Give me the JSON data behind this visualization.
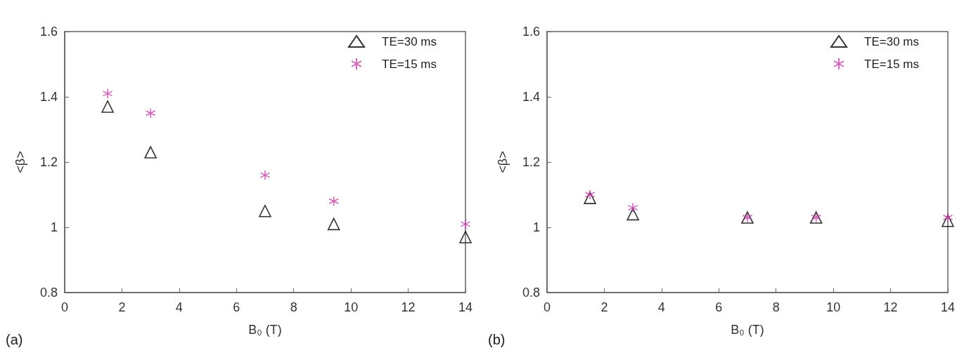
{
  "chart_data": [
    {
      "type": "scatter",
      "xlabel": "B₀ (T)",
      "ylabel": "<β>",
      "annotations": [
        "(a)"
      ],
      "x": [
        1.5,
        3,
        7,
        9.4,
        14
      ],
      "xlim": [
        0,
        14
      ],
      "xticks": [
        0,
        2,
        4,
        6,
        8,
        10,
        12,
        14
      ],
      "ylim": [
        0.8,
        1.6
      ],
      "yticks": [
        0.8,
        1,
        1.2,
        1.4,
        1.6
      ],
      "grid": false,
      "legend": "top right",
      "series": [
        {
          "name": "TE=30 ms",
          "color": "#000000",
          "marker": "triangle",
          "values": [
            1.37,
            1.23,
            1.05,
            1.01,
            0.97
          ]
        },
        {
          "name": "TE=15 ms",
          "color": "#c040a8",
          "marker": "cross",
          "values": [
            1.41,
            1.35,
            1.16,
            1.08,
            1.01
          ]
        }
      ]
    },
    {
      "type": "scatter",
      "xlabel": "B₀ (T)",
      "ylabel": "<β>",
      "annotations": [
        "(b)"
      ],
      "x": [
        1.5,
        3,
        7,
        9.4,
        14
      ],
      "xlim": [
        0,
        14
      ],
      "xticks": [
        0,
        2,
        4,
        6,
        8,
        10,
        12,
        14
      ],
      "ylim": [
        0.8,
        1.6
      ],
      "yticks": [
        0.8,
        1,
        1.2,
        1.4,
        1.6
      ],
      "grid": false,
      "legend": "top right",
      "series": [
        {
          "name": "TE=30 ms",
          "color": "#000000",
          "marker": "triangle",
          "values": [
            1.09,
            1.04,
            1.03,
            1.03,
            1.02
          ]
        },
        {
          "name": "TE=15 ms",
          "color": "#c040a8",
          "marker": "cross",
          "values": [
            1.1,
            1.06,
            1.03,
            1.03,
            1.03
          ]
        }
      ]
    }
  ]
}
